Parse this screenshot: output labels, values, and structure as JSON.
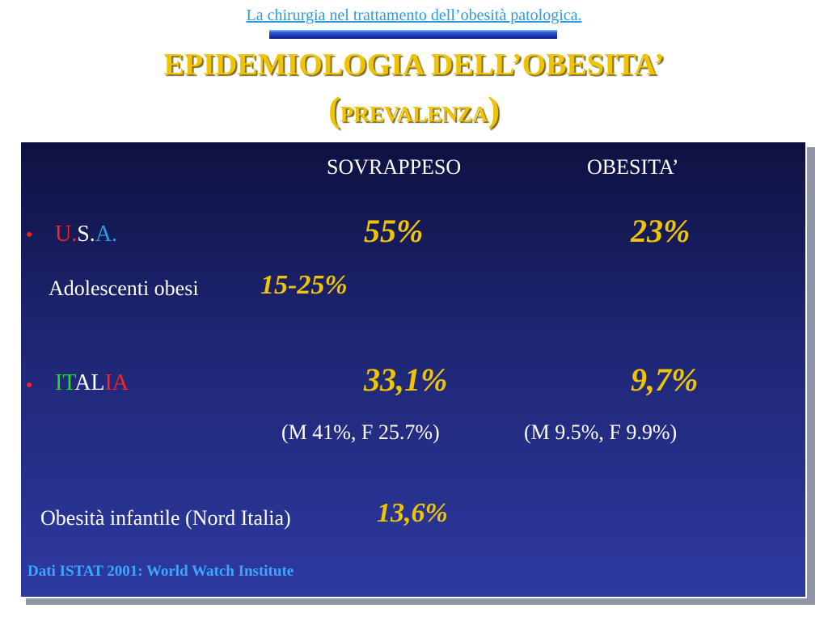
{
  "header": {
    "link_text": "La chirurgia nel trattamento dell’obesità patologica."
  },
  "title": {
    "line1": "EPIDEMIOLOGIA DELL’OBESITA’",
    "line2_open": "(",
    "line2_word": "PREVALENZA",
    "line2_close": ")"
  },
  "table": {
    "col_overweight": "SOVRAPPESO",
    "col_obesity": "OBESITA’",
    "usa": {
      "bullet": "•",
      "label_parts": [
        "U.",
        "S.",
        "A."
      ],
      "overweight": "55%",
      "obesity": "23%"
    },
    "adolescents": {
      "label": "Adolescenti obesi",
      "value": "15-25%"
    },
    "italy": {
      "bullet": "•",
      "label_parts": [
        "IT",
        "AL",
        "IA"
      ],
      "overweight": "33,1%",
      "obesity": "9,7%",
      "overweight_detail": "(M 41%, F 25.7%)",
      "obesity_detail": "(M 9.5%, F 9.9%)"
    },
    "childhood": {
      "label": "Obesità infantile (Nord Italia)",
      "value": "13,6%"
    }
  },
  "source": "Dati ISTAT 2001: World Watch Institute",
  "colors": {
    "title": "#f0c400",
    "link": "#2e9be0",
    "panel_top": "#0e1140",
    "panel_bottom": "#2d3aa0",
    "italy_green": "#22dd22",
    "italy_red": "#ff2020",
    "usa_red": "#ff2020",
    "usa_blue": "#2e9be0"
  }
}
